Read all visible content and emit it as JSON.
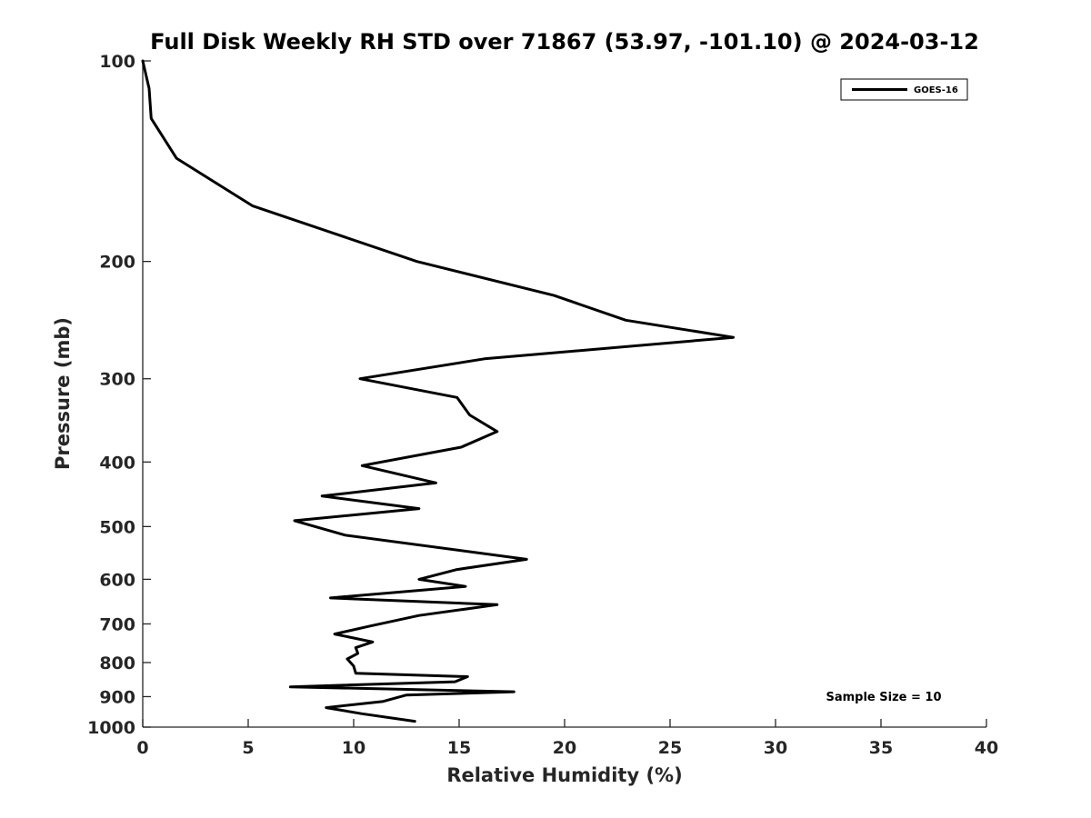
{
  "chart_data": {
    "type": "line",
    "title": "Full Disk Weekly RH STD over 71867 (53.97, -101.10) @ 2024-03-12",
    "xlabel": "Relative Humidity (%)",
    "ylabel": "Pressure (mb)",
    "xlim": [
      0,
      40
    ],
    "ylim": [
      100,
      1000
    ],
    "y_scale": "log",
    "y_reversed": true,
    "x_ticks": [
      0,
      5,
      10,
      15,
      20,
      25,
      30,
      35,
      40
    ],
    "y_ticks": [
      100,
      200,
      300,
      400,
      500,
      600,
      700,
      800,
      900,
      1000
    ],
    "grid": false,
    "legend_position": "top-right",
    "series": [
      {
        "name": "GOES-16",
        "color": "#000000",
        "x": [
          0.0,
          0.3,
          0.4,
          1.6,
          5.2,
          13.0,
          19.5,
          22.9,
          28.0,
          16.2,
          10.3,
          14.9,
          15.5,
          16.8,
          15.1,
          10.4,
          13.9,
          8.5,
          13.1,
          7.2,
          9.6,
          18.2,
          14.9,
          13.1,
          15.3,
          8.9,
          16.8,
          13.1,
          10.8,
          9.1,
          10.9,
          10.1,
          10.2,
          9.7,
          10.0,
          10.1,
          15.4,
          14.8,
          7.0,
          17.6,
          12.5,
          11.4,
          8.7,
          10.4,
          12.9
        ],
        "y": [
          100,
          110,
          122,
          140,
          165,
          200,
          225,
          245,
          260,
          280,
          300,
          320,
          340,
          360,
          380,
          405,
          430,
          450,
          470,
          490,
          515,
          560,
          580,
          600,
          615,
          640,
          655,
          680,
          705,
          725,
          745,
          760,
          775,
          790,
          810,
          830,
          840,
          855,
          870,
          885,
          895,
          915,
          935,
          955,
          980
        ]
      }
    ],
    "annotations": [
      "Sample Size = 10"
    ]
  }
}
